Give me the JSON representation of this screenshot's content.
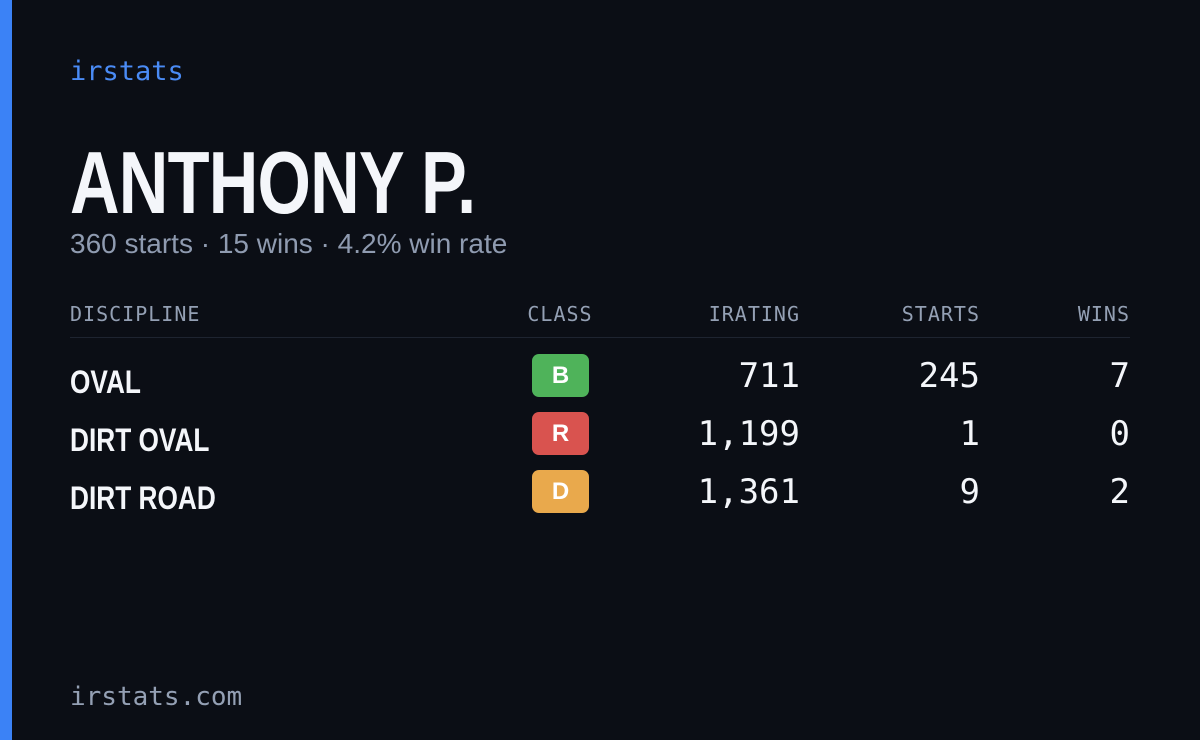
{
  "brand": "irstats",
  "driver": {
    "name": "ANTHONY P.",
    "summary": "360 starts · 15 wins · 4.2% win rate"
  },
  "table": {
    "headers": [
      "DISCIPLINE",
      "CLASS",
      "IRATING",
      "STARTS",
      "WINS"
    ],
    "rows": [
      {
        "discipline": "OVAL",
        "class": "B",
        "class_color": "#4fb35a",
        "irating": "711",
        "starts": "245",
        "wins": "7"
      },
      {
        "discipline": "DIRT OVAL",
        "class": "R",
        "class_color": "#d9534f",
        "irating": "1,199",
        "starts": "1",
        "wins": "0"
      },
      {
        "discipline": "DIRT ROAD",
        "class": "D",
        "class_color": "#e9a94c",
        "irating": "1,361",
        "starts": "9",
        "wins": "2"
      }
    ]
  },
  "footer": "irstats.com"
}
